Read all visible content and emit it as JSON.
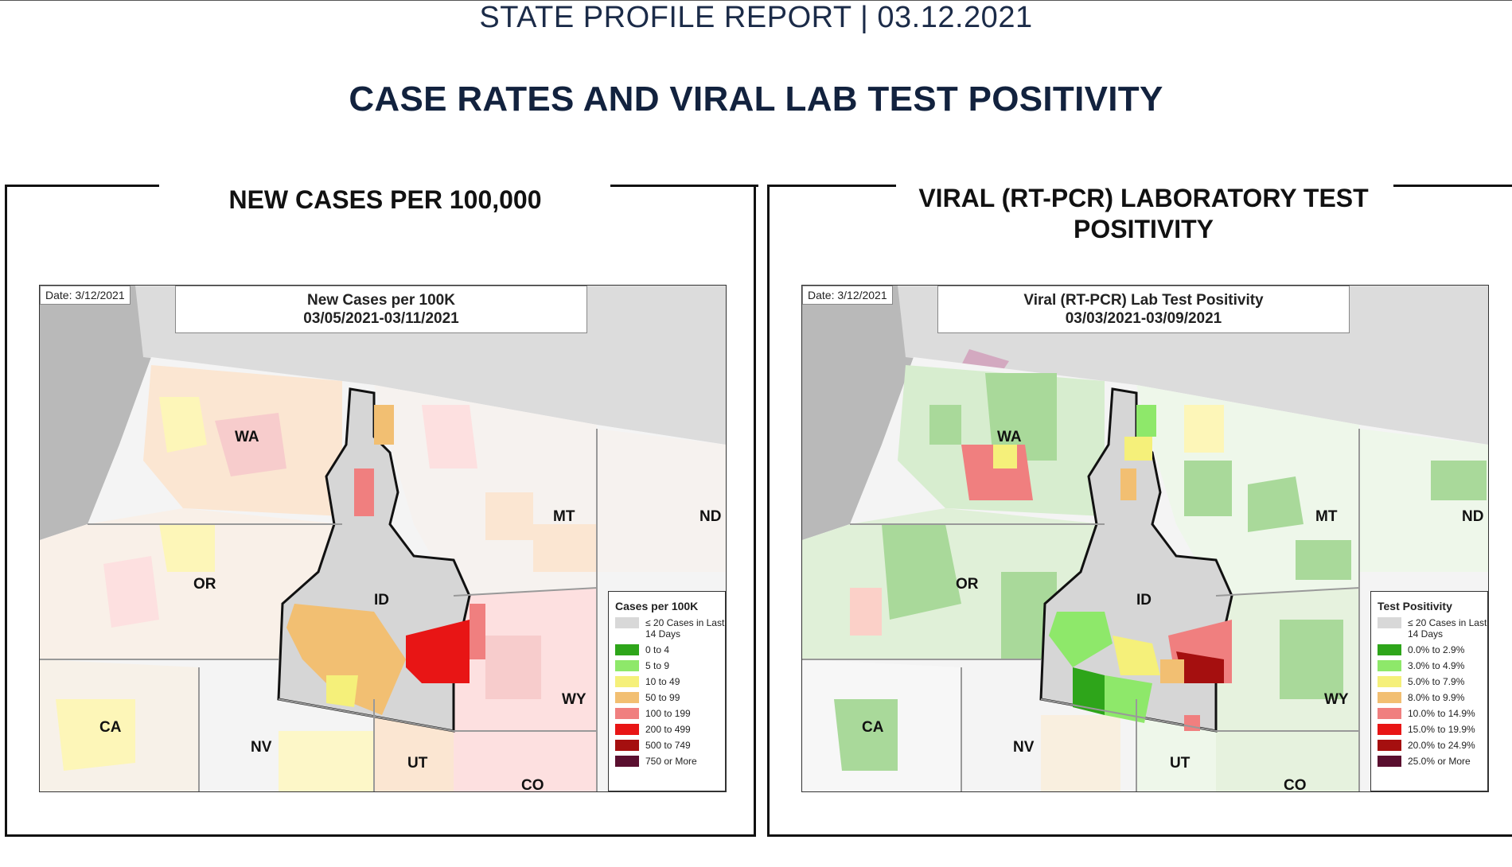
{
  "header": "STATE PROFILE REPORT | 03.12.2021",
  "section_title": "CASE RATES AND VIRAL LAB TEST POSITIVITY",
  "panels": [
    {
      "title": "NEW CASES PER 100,000",
      "date": "Date: 3/12/2021",
      "map_title_1": "New Cases per 100K",
      "map_title_2": "03/05/2021-03/11/2021",
      "legend_title": "Cases per 100K",
      "legend": [
        {
          "label": "≤ 20 Cases in Last 14 Days",
          "color": "#d8d8d8"
        },
        {
          "label": "0 to 4",
          "color": "#2ea51a"
        },
        {
          "label": "5 to 9",
          "color": "#8ee86a"
        },
        {
          "label": "10 to 49",
          "color": "#f5f07a"
        },
        {
          "label": "50 to 99",
          "color": "#f2bf72"
        },
        {
          "label": "100 to 199",
          "color": "#f07f7f"
        },
        {
          "label": "200 to 499",
          "color": "#e81515"
        },
        {
          "label": "500 to 749",
          "color": "#a50f0f"
        },
        {
          "label": "750 or More",
          "color": "#5a0f2f"
        }
      ],
      "states": [
        "WA",
        "OR",
        "CA",
        "NV",
        "ID",
        "MT",
        "ND",
        "WY",
        "UT",
        "CO"
      ]
    },
    {
      "title": "VIRAL (RT-PCR) LABORATORY TEST POSITIVITY",
      "date": "Date: 3/12/2021",
      "map_title_1": "Viral (RT-PCR) Lab Test Positivity",
      "map_title_2": "03/03/2021-03/09/2021",
      "legend_title": "Test Positivity",
      "legend": [
        {
          "label": "≤ 20 Cases in Last 14 Days",
          "color": "#d8d8d8"
        },
        {
          "label": "0.0% to 2.9%",
          "color": "#2ea51a"
        },
        {
          "label": "3.0% to 4.9%",
          "color": "#8ee86a"
        },
        {
          "label": "5.0% to 7.9%",
          "color": "#f5f07a"
        },
        {
          "label": "8.0% to 9.9%",
          "color": "#f2bf72"
        },
        {
          "label": "10.0% to 14.9%",
          "color": "#f07f7f"
        },
        {
          "label": "15.0% to 19.9%",
          "color": "#e81515"
        },
        {
          "label": "20.0% to 24.9%",
          "color": "#a50f0f"
        },
        {
          "label": "25.0% or More",
          "color": "#5a0f2f"
        }
      ],
      "states": [
        "WA",
        "OR",
        "CA",
        "NV",
        "ID",
        "MT",
        "ND",
        "WY",
        "UT",
        "CO"
      ]
    }
  ]
}
